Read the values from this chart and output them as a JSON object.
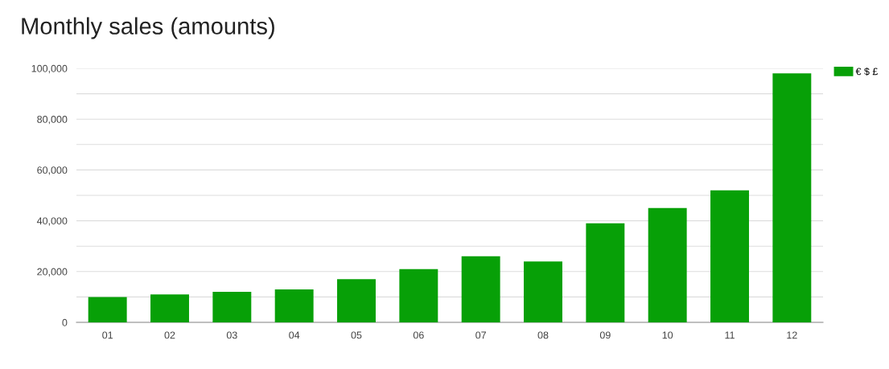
{
  "chart_data": {
    "type": "bar",
    "title": "Monthly sales (amounts)",
    "categories": [
      "01",
      "02",
      "03",
      "04",
      "05",
      "06",
      "07",
      "08",
      "09",
      "10",
      "11",
      "12"
    ],
    "series": [
      {
        "name": "€ $ £",
        "color": "#07a007",
        "values": [
          10000,
          11000,
          12000,
          13000,
          17000,
          21000,
          26000,
          24000,
          39000,
          45000,
          52000,
          98000
        ]
      }
    ],
    "ylim": [
      0,
      100000
    ],
    "yticks": [
      {
        "value": 0,
        "label": "0"
      },
      {
        "value": 10000,
        "label": null
      },
      {
        "value": 20000,
        "label": "20,000"
      },
      {
        "value": 30000,
        "label": null
      },
      {
        "value": 40000,
        "label": "40,000"
      },
      {
        "value": 50000,
        "label": null
      },
      {
        "value": 60000,
        "label": "60,000"
      },
      {
        "value": 70000,
        "label": null
      },
      {
        "value": 80000,
        "label": "80,000"
      },
      {
        "value": 90000,
        "label": null
      },
      {
        "value": 100000,
        "label": "100,000"
      }
    ],
    "grid": "y",
    "legend": "top right"
  }
}
